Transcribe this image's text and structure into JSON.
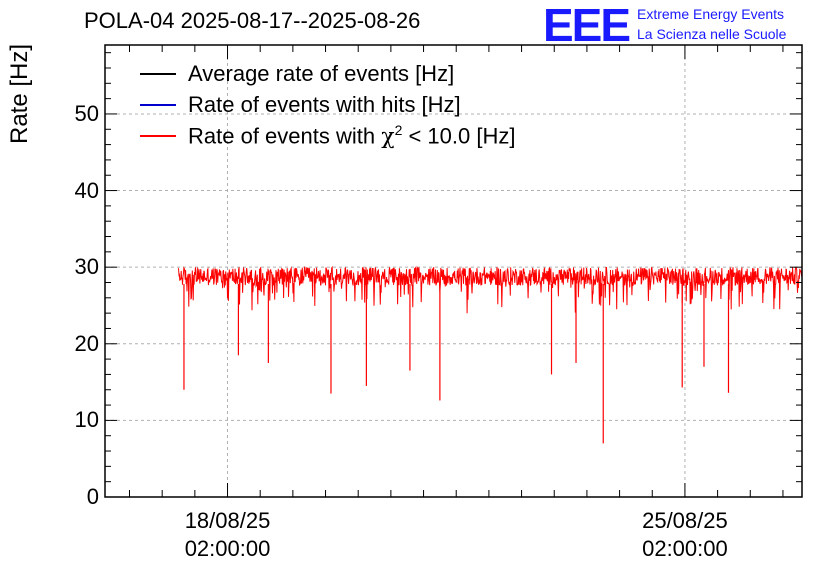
{
  "chart_data": {
    "type": "line",
    "title": "POLA-04 2025-08-17--2025-08-26",
    "ylabel": "Rate [Hz]",
    "xlabel": "",
    "ylim": [
      0,
      59
    ],
    "yticks": [
      0,
      10,
      20,
      30,
      40,
      50
    ],
    "xlim": [
      "2025-08-16T05:00:00",
      "2025-08-26T21:00:00"
    ],
    "xticks": [
      {
        "date": "2025-08-18T02:00:00",
        "line1": "18/08/25",
        "line2": "02:00:00"
      },
      {
        "date": "2025-08-25T02:00:00",
        "line1": "25/08/25",
        "line2": "02:00:00"
      }
    ],
    "grid": true,
    "legend_position": "top-left",
    "series": [
      {
        "name": "Average rate of events [Hz]",
        "color": "#000000",
        "x_start": "2025-08-17T08:00:00",
        "x_end": "2025-08-26T21:00:00",
        "baseline": 28.8,
        "noise": 1.2,
        "dips": [
          {
            "x": "2025-08-17T10:00:00",
            "y": 14.0
          },
          {
            "x": "2025-08-18T06:00:00",
            "y": 18.5
          },
          {
            "x": "2025-08-18T17:00:00",
            "y": 17.5
          },
          {
            "x": "2025-08-19T16:00:00",
            "y": 13.5
          },
          {
            "x": "2025-08-20T05:00:00",
            "y": 14.5
          },
          {
            "x": "2025-08-20T21:00:00",
            "y": 16.5
          },
          {
            "x": "2025-08-21T08:00:00",
            "y": 12.6
          },
          {
            "x": "2025-08-23T01:00:00",
            "y": 16.0
          },
          {
            "x": "2025-08-23T10:00:00",
            "y": 17.5
          },
          {
            "x": "2025-08-23T20:00:00",
            "y": 7.0
          },
          {
            "x": "2025-08-25T01:00:00",
            "y": 14.3
          },
          {
            "x": "2025-08-25T09:00:00",
            "y": 17.0
          },
          {
            "x": "2025-08-25T18:00:00",
            "y": 13.6
          }
        ]
      },
      {
        "name": "Rate of events with hits [Hz]",
        "color": "#0000cc"
      },
      {
        "name": "Rate of events with χ² < 10.0 [Hz]",
        "name_main": "Rate of events with ",
        "name_chi": "χ",
        "name_sup": "2",
        "name_tail": " < 10.0 [Hz]",
        "color": "#ff0000"
      }
    ]
  },
  "logo": {
    "mark": "EEE",
    "line1": "Extreme Energy Events",
    "line2": "La Scienza nelle Scuole"
  }
}
